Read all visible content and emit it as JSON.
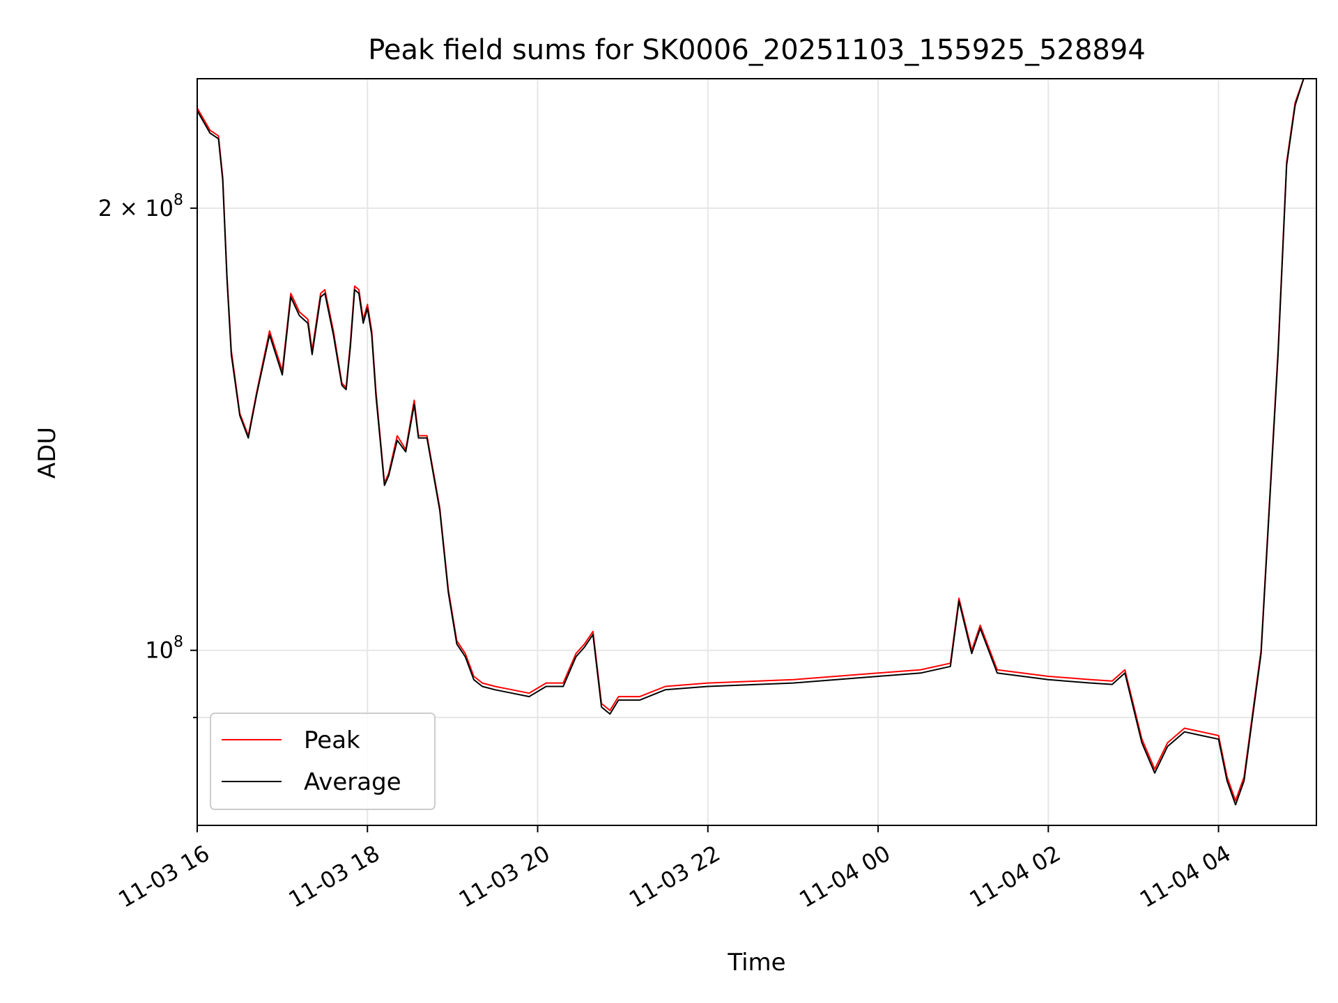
{
  "chart_data": {
    "type": "line",
    "title": "Peak field sums for SK0006_20251103_155925_528894",
    "xlabel": "Time",
    "ylabel": "ADU",
    "yscale": "log",
    "ylim": [
      76000000,
      245000000
    ],
    "xlim_hours": [
      16.0,
      29.15
    ],
    "x_ticks": [
      {
        "hour": 16,
        "label": "11-03 16"
      },
      {
        "hour": 18,
        "label": "11-03 18"
      },
      {
        "hour": 20,
        "label": "11-03 20"
      },
      {
        "hour": 22,
        "label": "11-03 22"
      },
      {
        "hour": 24,
        "label": "11-04 00"
      },
      {
        "hour": 26,
        "label": "11-04 02"
      },
      {
        "hour": 28,
        "label": "11-04 04"
      }
    ],
    "y_ticks": [
      {
        "value": 200000000,
        "mantissa": "2",
        "times": "×",
        "base": "10",
        "exp": "8"
      },
      {
        "value": 100000000,
        "mantissa": "",
        "times": "",
        "base": "10",
        "exp": "8"
      }
    ],
    "y_minor_ticks": [
      90000000
    ],
    "x": [
      16.0,
      16.15,
      16.25,
      16.3,
      16.35,
      16.4,
      16.5,
      16.6,
      16.7,
      16.85,
      17.0,
      17.1,
      17.2,
      17.3,
      17.35,
      17.45,
      17.5,
      17.6,
      17.7,
      17.75,
      17.8,
      17.85,
      17.9,
      17.95,
      18.0,
      18.05,
      18.1,
      18.2,
      18.25,
      18.35,
      18.45,
      18.55,
      18.6,
      18.7,
      18.85,
      18.95,
      19.05,
      19.15,
      19.25,
      19.35,
      19.5,
      19.7,
      19.9,
      20.1,
      20.3,
      20.45,
      20.55,
      20.65,
      20.75,
      20.85,
      20.95,
      21.2,
      21.5,
      22.0,
      23.0,
      24.0,
      24.5,
      24.85,
      24.95,
      25.1,
      25.2,
      25.4,
      26.0,
      26.5,
      26.75,
      26.9,
      27.1,
      27.25,
      27.4,
      27.6,
      27.8,
      28.0,
      28.1,
      28.2,
      28.3,
      28.5,
      28.7,
      28.8,
      28.9,
      29.0,
      29.15
    ],
    "series": [
      {
        "name": "Peak",
        "color": "#ff0000",
        "values": [
          234000000,
          226000000,
          224000000,
          210000000,
          180000000,
          160000000,
          145000000,
          140000000,
          150000000,
          165000000,
          155000000,
          175000000,
          170000000,
          168000000,
          160000000,
          175000000,
          176000000,
          165000000,
          152000000,
          151000000,
          162000000,
          177000000,
          176000000,
          168000000,
          172000000,
          165000000,
          150000000,
          130000000,
          132000000,
          140000000,
          137000000,
          148000000,
          140000000,
          140000000,
          125000000,
          110000000,
          101500000,
          99500000,
          96000000,
          95000000,
          94500000,
          94000000,
          93500000,
          95000000,
          95000000,
          99500000,
          101000000,
          103000000,
          92000000,
          91000000,
          93000000,
          93000000,
          94500000,
          95000000,
          95500000,
          96500000,
          97000000,
          98000000,
          108500000,
          100000000,
          104000000,
          97000000,
          96000000,
          95500000,
          95300000,
          97000000,
          87000000,
          83000000,
          86500000,
          88500000,
          88000000,
          87500000,
          82000000,
          79000000,
          82000000,
          100000000,
          160000000,
          215000000,
          236000000,
          245000000,
          245000000
        ]
      },
      {
        "name": "Average",
        "color": "#000000",
        "values": [
          233000000,
          225000000,
          223000000,
          209000000,
          179000000,
          159000000,
          144500000,
          139500000,
          149500000,
          164000000,
          154000000,
          174000000,
          169000000,
          167000000,
          159000000,
          174000000,
          175000000,
          164000000,
          151500000,
          150500000,
          161000000,
          176000000,
          175000000,
          167000000,
          171000000,
          164000000,
          149000000,
          129500000,
          131500000,
          139000000,
          136500000,
          147000000,
          139500000,
          139500000,
          124500000,
          109500000,
          101000000,
          99000000,
          95500000,
          94500000,
          94000000,
          93500000,
          93000000,
          94500000,
          94500000,
          99000000,
          100500000,
          102500000,
          91500000,
          90500000,
          92500000,
          92500000,
          94000000,
          94500000,
          95000000,
          96000000,
          96500000,
          97500000,
          108000000,
          99500000,
          103500000,
          96500000,
          95500000,
          95000000,
          94800000,
          96500000,
          86500000,
          82500000,
          86000000,
          88000000,
          87500000,
          87000000,
          81500000,
          78500000,
          81500000,
          99500000,
          159000000,
          214000000,
          235000000,
          245000000,
          245000000
        ]
      }
    ],
    "legend": {
      "position": "bottom-left"
    }
  }
}
